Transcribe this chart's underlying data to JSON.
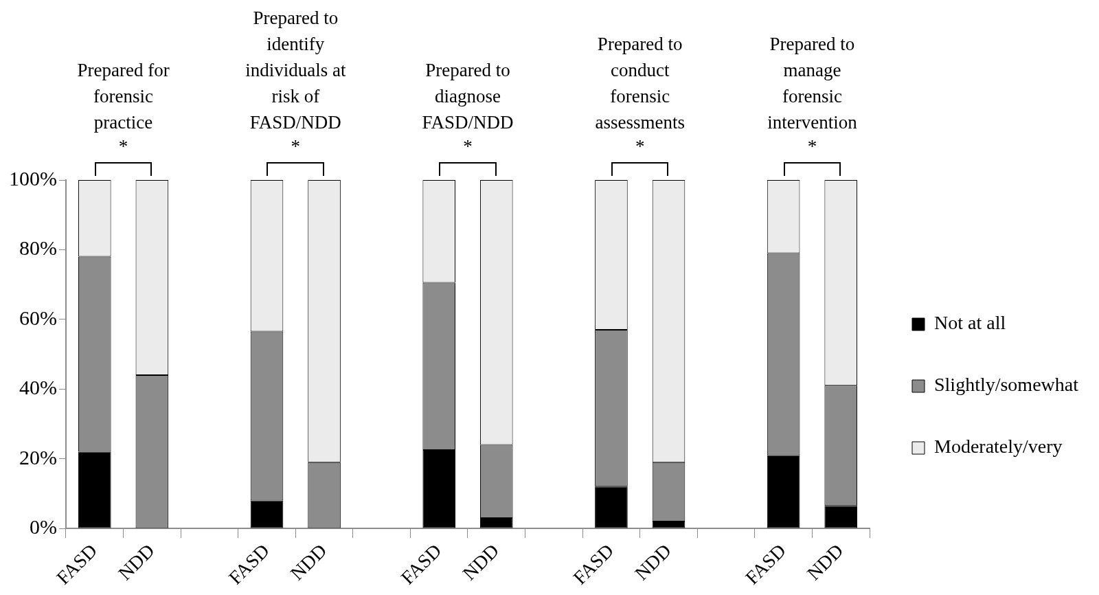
{
  "chart_data": {
    "type": "bar",
    "stacked": true,
    "categories": [
      "FASD",
      "NDD",
      null,
      "FASD",
      "NDD",
      null,
      "FASD",
      "NDD",
      null,
      "FASD",
      "NDD",
      null,
      "FASD",
      "NDD"
    ],
    "series": [
      {
        "name": "Not at all",
        "color": "#000000",
        "values": [
          22,
          0,
          null,
          8,
          0,
          null,
          22.5,
          3,
          null,
          12,
          2,
          null,
          21,
          6.5
        ]
      },
      {
        "name": "Slightly/somewhat",
        "color": "#8c8c8c",
        "values": [
          56,
          44,
          null,
          48.5,
          19,
          null,
          48,
          21,
          null,
          45,
          17,
          null,
          58,
          34.5
        ]
      },
      {
        "name": "Moderately/very",
        "color": "#ebebeb",
        "values": [
          22,
          56,
          null,
          43.5,
          81,
          null,
          29.5,
          76,
          null,
          43,
          81,
          null,
          21,
          59
        ]
      }
    ],
    "ylim": [
      0,
      100
    ],
    "yticks": [
      {
        "value": 0,
        "label": "0%"
      },
      {
        "value": 20,
        "label": "20%"
      },
      {
        "value": 40,
        "label": "40%"
      },
      {
        "value": 60,
        "label": "60%"
      },
      {
        "value": 80,
        "label": "80%"
      },
      {
        "value": 100,
        "label": "100%"
      }
    ],
    "grid": false,
    "legend": "right",
    "annotations": [
      "Prepared for forensic practice",
      "Prepared to identify individuals at risk of FASD/NDD",
      "Prepared to diagnose FASD/NDD",
      "Prepared to conduct forensic assessments",
      "Prepared to manage forensic intervention",
      "*",
      "*",
      "*",
      "*",
      "*"
    ]
  }
}
